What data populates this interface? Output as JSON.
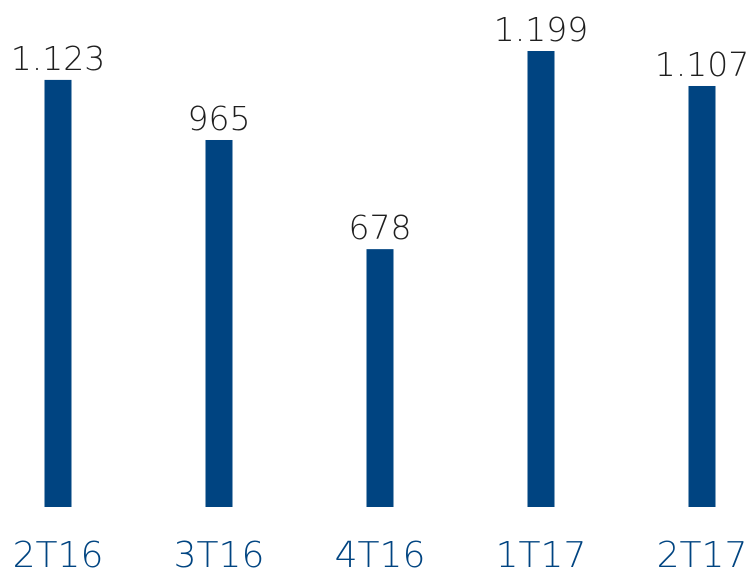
{
  "chart_data": {
    "type": "bar",
    "categories": [
      "2T16",
      "3T16",
      "4T16",
      "1T17",
      "2T17"
    ],
    "values": [
      1123,
      965,
      678,
      1199,
      1107
    ],
    "value_labels": [
      "1.123",
      "965",
      "678",
      "1.199",
      "1.107"
    ],
    "title": "",
    "xlabel": "",
    "ylabel": "",
    "ylim": [
      0,
      1199
    ],
    "grid": false,
    "legend": "none",
    "colors": {
      "bar": "#004481",
      "category_text": "#004481",
      "value_text": "#1f1f1f"
    }
  }
}
